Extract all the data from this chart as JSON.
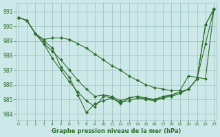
{
  "title": "Graphe pression niveau de la mer (hPa)",
  "background_color": "#cce8e8",
  "grid_color": "#9bbcbc",
  "line_color": "#2d6e2d",
  "marker_color": "#2d6e2d",
  "xlim": [
    -0.3,
    23.3
  ],
  "ylim": [
    983.6,
    991.6
  ],
  "yticks": [
    984,
    985,
    986,
    987,
    988,
    989,
    990,
    991
  ],
  "xticks": [
    0,
    1,
    2,
    3,
    4,
    5,
    6,
    7,
    8,
    9,
    10,
    11,
    12,
    13,
    14,
    15,
    16,
    17,
    18,
    19,
    20,
    21,
    22,
    23
  ],
  "series": [
    [
      990.6,
      990.4,
      989.5,
      988.8,
      988.3,
      987.7,
      987.0,
      986.3,
      985.7,
      985.2,
      985.3,
      985.2,
      984.9,
      985.1,
      985.2,
      985.1,
      985.0,
      985.2,
      985.3,
      985.5,
      985.7,
      986.4,
      988.8,
      991.2
    ],
    [
      990.6,
      990.4,
      989.5,
      988.8,
      987.8,
      987.0,
      986.2,
      985.5,
      984.9,
      984.5,
      985.2,
      985.1,
      984.8,
      984.9,
      985.1,
      985.0,
      985.0,
      985.1,
      985.2,
      985.4,
      985.7,
      986.4,
      990.1,
      991.2
    ],
    [
      990.6,
      990.4,
      989.5,
      989.0,
      988.5,
      987.2,
      986.5,
      985.3,
      984.1,
      984.7,
      984.9,
      985.1,
      984.7,
      985.1,
      985.2,
      985.0,
      984.9,
      985.1,
      985.3,
      985.5,
      985.7,
      986.4,
      990.1,
      991.2
    ],
    [
      990.6,
      990.4,
      989.5,
      989.1,
      989.2,
      989.2,
      989.1,
      988.8,
      988.5,
      988.1,
      987.7,
      987.3,
      987.0,
      986.6,
      986.3,
      986.0,
      985.8,
      985.7,
      985.6,
      985.6,
      986.6,
      986.5,
      986.4,
      991.2
    ]
  ]
}
